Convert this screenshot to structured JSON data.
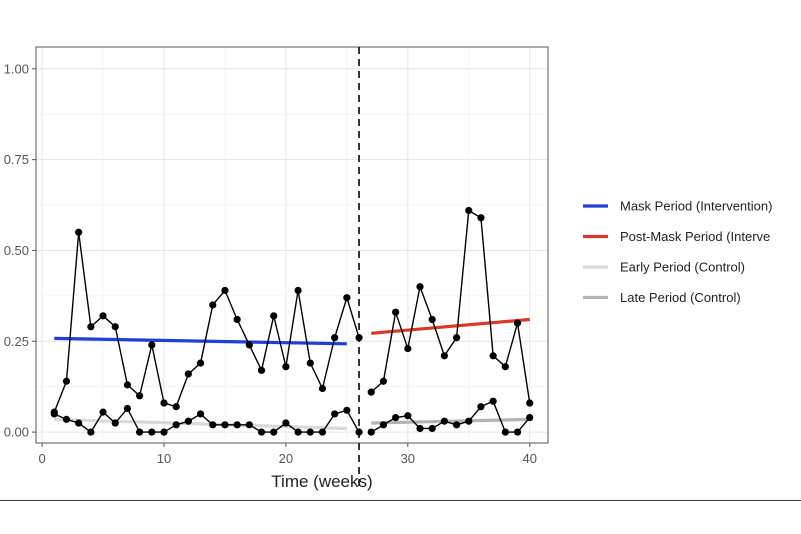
{
  "chart_data": {
    "type": "line",
    "title": "",
    "xlabel": "Time (weeks)",
    "ylabel": "",
    "xlim": [
      -0.5,
      41.5
    ],
    "ylim": [
      -0.03,
      1.06
    ],
    "xticks": [
      0,
      10,
      20,
      30,
      40
    ],
    "xtick_labels": [
      "0",
      "10",
      "20",
      "30",
      "40"
    ],
    "yticks": [
      0,
      0.25,
      0.5,
      0.75,
      1.0
    ],
    "ytick_labels": [
      "0.00",
      "0.25",
      "0.50",
      "0.75",
      "1.00"
    ],
    "grid": true,
    "legend_position": "right",
    "intervention_week": 26,
    "observed_series": [
      {
        "x": [
          1,
          2,
          3,
          4,
          5,
          6,
          7,
          8,
          9,
          10,
          11,
          12,
          13,
          14,
          15,
          16,
          17,
          18,
          19,
          20,
          21,
          22,
          23,
          24,
          25,
          26,
          27,
          28,
          29,
          30,
          31,
          32,
          33,
          34,
          35,
          36,
          37,
          38,
          39,
          40
        ],
        "values": [
          0.055,
          0.14,
          0.55,
          0.29,
          0.32,
          0.29,
          0.13,
          0.1,
          0.24,
          0.08,
          0.07,
          0.16,
          0.19,
          0.35,
          0.39,
          0.31,
          0.24,
          0.17,
          0.32,
          0.18,
          0.39,
          0.19,
          0.12,
          0.26,
          0.37,
          0.26,
          0.11,
          0.14,
          0.33,
          0.23,
          0.4,
          0.31,
          0.21,
          0.26,
          0.61,
          0.59,
          0.21,
          0.18,
          0.3,
          0.08
        ],
        "color": "#000000"
      },
      {
        "x": [
          1,
          2,
          3,
          4,
          5,
          6,
          7,
          8,
          9,
          10,
          11,
          12,
          13,
          14,
          15,
          16,
          17,
          18,
          19,
          20,
          21,
          22,
          23,
          24,
          25,
          26,
          27,
          28,
          29,
          30,
          31,
          32,
          33,
          34,
          35,
          36,
          37,
          38,
          39,
          40
        ],
        "values": [
          0.05,
          0.035,
          0.025,
          0.0,
          0.055,
          0.025,
          0.065,
          0.0,
          0.0,
          0.0,
          0.02,
          0.03,
          0.05,
          0.02,
          0.02,
          0.02,
          0.02,
          0.0,
          0.0,
          0.025,
          0.0,
          0.0,
          0.0,
          0.05,
          0.06,
          0.0,
          0.0,
          0.02,
          0.04,
          0.045,
          0.01,
          0.01,
          0.03,
          0.02,
          0.03,
          0.07,
          0.085,
          0.0,
          0.0,
          0.04
        ],
        "color": "#000000"
      }
    ],
    "trend_lines": [
      {
        "name": "Mask Period (Intervention)",
        "x": [
          1,
          25
        ],
        "values": [
          0.258,
          0.243
        ],
        "color": "#1f3fd6",
        "width": 3.2
      },
      {
        "name": "Post-Mask Period (Intervention)",
        "x": [
          27,
          40
        ],
        "values": [
          0.272,
          0.31
        ],
        "color": "#d63a2a",
        "width": 3.2
      },
      {
        "name": "Early Period (Control)",
        "x": [
          1,
          25
        ],
        "values": [
          0.035,
          0.01
        ],
        "color": "#d9d9d9",
        "width": 3.2
      },
      {
        "name": "Late Period (Control)",
        "x": [
          27,
          40
        ],
        "values": [
          0.025,
          0.035
        ],
        "color": "#b3b3b3",
        "width": 3.2
      }
    ],
    "legend": [
      {
        "label": "Mask Period (Intervention)",
        "color": "#1f3fd6"
      },
      {
        "label": "Post-Mask Period (Interve",
        "color": "#d63a2a"
      },
      {
        "label": "Early Period (Control)",
        "color": "#d9d9d9"
      },
      {
        "label": "Late Period (Control)",
        "color": "#b3b3b3"
      }
    ]
  }
}
